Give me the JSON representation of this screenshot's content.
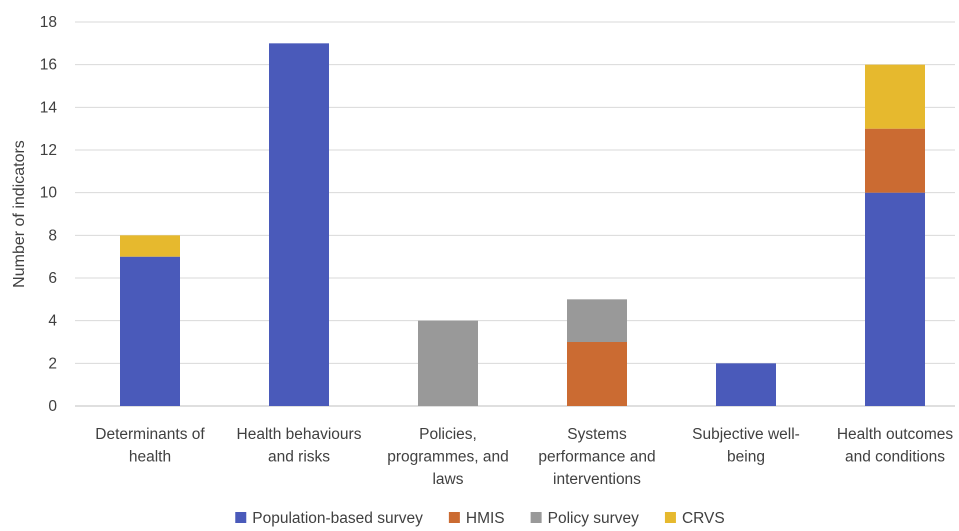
{
  "chart_data": {
    "type": "bar",
    "stacked": true,
    "title": "",
    "xlabel": "",
    "ylabel": "Number of indicators",
    "ylim": [
      0,
      18
    ],
    "yticks": [
      0,
      2,
      4,
      6,
      8,
      10,
      12,
      14,
      16,
      18
    ],
    "grid": true,
    "legend_position": "bottom",
    "categories": [
      [
        "Determinants of",
        "health"
      ],
      [
        "Health behaviours",
        "and risks"
      ],
      [
        "Policies,",
        "programmes, and",
        "laws"
      ],
      [
        "Systems",
        "performance and",
        "interventions"
      ],
      [
        "Subjective well-",
        "being"
      ],
      [
        "Health outcomes",
        "and conditions"
      ]
    ],
    "series": [
      {
        "name": "Population-based survey",
        "color": "#4A5ABA",
        "values": [
          7,
          17,
          0,
          0,
          2,
          10
        ]
      },
      {
        "name": "HMIS",
        "color": "#CB6B32",
        "values": [
          0,
          0,
          0,
          3,
          0,
          3
        ]
      },
      {
        "name": "Policy survey",
        "color": "#999999",
        "values": [
          0,
          0,
          4,
          2,
          0,
          0
        ]
      },
      {
        "name": "CRVS",
        "color": "#E6B92E",
        "values": [
          1,
          0,
          0,
          0,
          0,
          3
        ]
      }
    ],
    "gridline_color": "#D9D9D9",
    "text_color": "#404040"
  }
}
